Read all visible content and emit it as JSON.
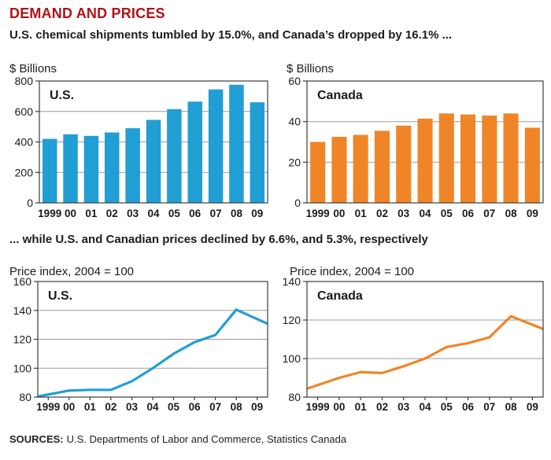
{
  "header": {
    "title": "DEMAND AND PRICES",
    "subtitle": "U.S. chemical shipments tumbled by 15.0%, and Canada’s dropped by 16.1% ..."
  },
  "middle_caption": "... while U.S. and Canadian prices declined by 6.6%, and 5.3%, respectively",
  "sources": {
    "label": "SOURCES:",
    "text": "U.S. Departments of Labor and Commerce, Statistics Canada"
  },
  "colors": {
    "us": "#219ed3",
    "canada": "#f08528",
    "title_red": "#b11218",
    "grid": "#9b9b9b",
    "frame": "#3d3d3d"
  },
  "chart_data": [
    {
      "type": "bar",
      "panel_label": "U.S.",
      "ylabel": "$ Billions",
      "xlabel": "",
      "categories": [
        "1999",
        "00",
        "01",
        "02",
        "03",
        "04",
        "05",
        "06",
        "07",
        "08",
        "09"
      ],
      "values": [
        420,
        450,
        440,
        462,
        490,
        545,
        615,
        665,
        745,
        775,
        660
      ],
      "ylim": [
        0,
        800
      ],
      "yticks": [
        0,
        200,
        400,
        600,
        800
      ],
      "grid": true,
      "legend": "none",
      "color_key": "us"
    },
    {
      "type": "bar",
      "panel_label": "Canada",
      "ylabel": "$ Billions",
      "xlabel": "",
      "categories": [
        "1999",
        "00",
        "01",
        "02",
        "03",
        "04",
        "05",
        "06",
        "07",
        "08",
        "09"
      ],
      "values": [
        30,
        32.5,
        33.5,
        35.5,
        38,
        41.5,
        44,
        43.5,
        43,
        44,
        37
      ],
      "ylim": [
        0,
        60
      ],
      "yticks": [
        0,
        20,
        40,
        60
      ],
      "grid": true,
      "legend": "none",
      "color_key": "canada"
    },
    {
      "type": "line",
      "panel_label": "U.S.",
      "ylabel": "Price index, 2004 = 100",
      "xlabel": "",
      "categories": [
        "1999",
        "00",
        "01",
        "02",
        "03",
        "04",
        "05",
        "06",
        "07",
        "08",
        "09"
      ],
      "values": [
        80.5,
        84.5,
        85,
        85,
        91,
        100,
        110,
        118,
        123,
        140.5,
        131
      ],
      "ylim": [
        80,
        160
      ],
      "yticks": [
        80,
        100,
        120,
        140,
        160
      ],
      "grid": true,
      "legend": "none",
      "color_key": "us"
    },
    {
      "type": "line",
      "panel_label": "Canada",
      "ylabel": "Price index, 2004 = 100",
      "xlabel": "",
      "categories": [
        "1999",
        "00",
        "01",
        "02",
        "03",
        "04",
        "05",
        "06",
        "07",
        "08",
        "09"
      ],
      "values": [
        84.5,
        90,
        93,
        92.5,
        96,
        100,
        106,
        108,
        111,
        122,
        115.5
      ],
      "ylim": [
        80,
        140
      ],
      "yticks": [
        80,
        100,
        120,
        140
      ],
      "grid": true,
      "legend": "none",
      "color_key": "canada"
    }
  ]
}
